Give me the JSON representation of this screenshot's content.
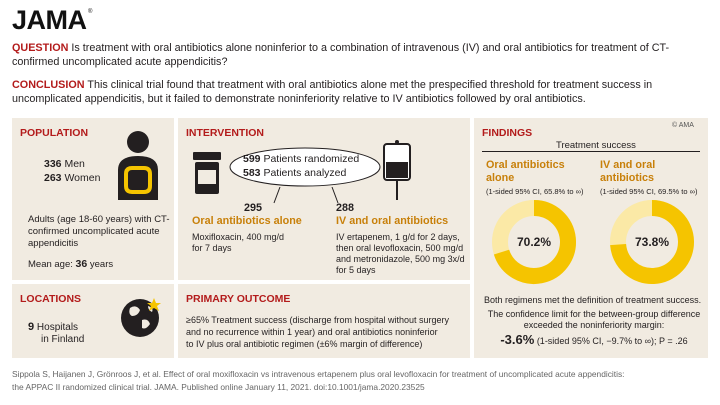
{
  "header": {
    "logo": "JAMA",
    "question_label": "QUESTION",
    "question_text": "Is treatment with oral antibiotics alone noninferior to a combination of intravenous (IV) and oral antibiotics for treatment of CT-confirmed uncomplicated acute appendicitis?",
    "conclusion_label": "CONCLUSION",
    "conclusion_text": "This clinical trial found that treatment with oral antibiotics alone met the prespecified threshold for treatment success in uncomplicated appendicitis, but it failed to demonstrate noninferiority relative to IV antibiotics followed by oral antibiotics."
  },
  "population": {
    "title": "POPULATION",
    "men_count": "336",
    "men_label": "Men",
    "women_count": "263",
    "women_label": "Women",
    "description": "Adults (age 18-60 years) with CT-confirmed uncomplicated acute appendicitis",
    "mean_age_label": "Mean age:",
    "mean_age_value": "36",
    "mean_age_unit": "years"
  },
  "locations": {
    "title": "LOCATIONS",
    "count": "9",
    "label_line1": "Hospitals",
    "label_line2": "in Finland"
  },
  "intervention": {
    "title": "INTERVENTION",
    "randomized_count": "599",
    "randomized_label": "Patients randomized",
    "analyzed_count": "583",
    "analyzed_label": "Patients analyzed",
    "oral": {
      "count": "295",
      "name": "Oral antibiotics alone",
      "detail_line1": "Moxifloxacin, 400 mg/d",
      "detail_line2": "for 7 days"
    },
    "iv": {
      "count": "288",
      "name": "IV and oral antibiotics",
      "detail_line1": "IV ertapenem, 1 g/d for 2 days,",
      "detail_line2": "then oral levofloxacin, 500 mg/d",
      "detail_line3": "and metronidazole, 500 mg 3x/d",
      "detail_line4": "for 5 days"
    }
  },
  "outcome": {
    "title": "PRIMARY OUTCOME",
    "line1": "≥65% Treatment success (discharge from hospital without surgery",
    "line2": "and no recurrence within 1 year) and oral antibiotics noninferior",
    "line3": "to IV plus oral antibiotic regimen (±6% margin of difference)"
  },
  "findings": {
    "title": "FINDINGS",
    "copyright": "© AMA",
    "subtitle": "Treatment success",
    "oral_name_line1": "Oral antibiotics",
    "oral_name_line2": "alone",
    "oral_ci": "(1-sided 95% CI, 65.8% to ∞)",
    "oral_value": "70.2%",
    "oral_pct": 70.2,
    "iv_name_line1": "IV and oral",
    "iv_name_line2": "antibiotics",
    "iv_ci": "(1-sided 95% CI, 69.5% to ∞)",
    "iv_value": "73.8%",
    "iv_pct": 73.8,
    "summary1": "Both regimens met the definition of treatment success.",
    "summary2_line1": "The confidence limit for the between-group difference",
    "summary2_line2": "exceeded the noninferiority margin:",
    "diff_value": "-3.6%",
    "diff_ci": "(1-sided 95% CI, −9.7% to ∞); P = .26"
  },
  "citation": {
    "line1": "Sippola S, Haijanen J, Grönroos J, et al. Effect of oral moxifloxacin vs intravenous ertapenem plus oral levofloxacin for treatment of uncomplicated acute appendicitis:",
    "line2": "the APPAC II randomized clinical trial. JAMA. Published online January 11, 2021. doi:10.1001/jama.2020.23525"
  },
  "colors": {
    "accent_red": "#b31b1b",
    "panel_bg": "#f1ebe1",
    "orange": "#c8800a",
    "donut_fill": "#f5c400",
    "donut_track": "#fbe9a6"
  }
}
